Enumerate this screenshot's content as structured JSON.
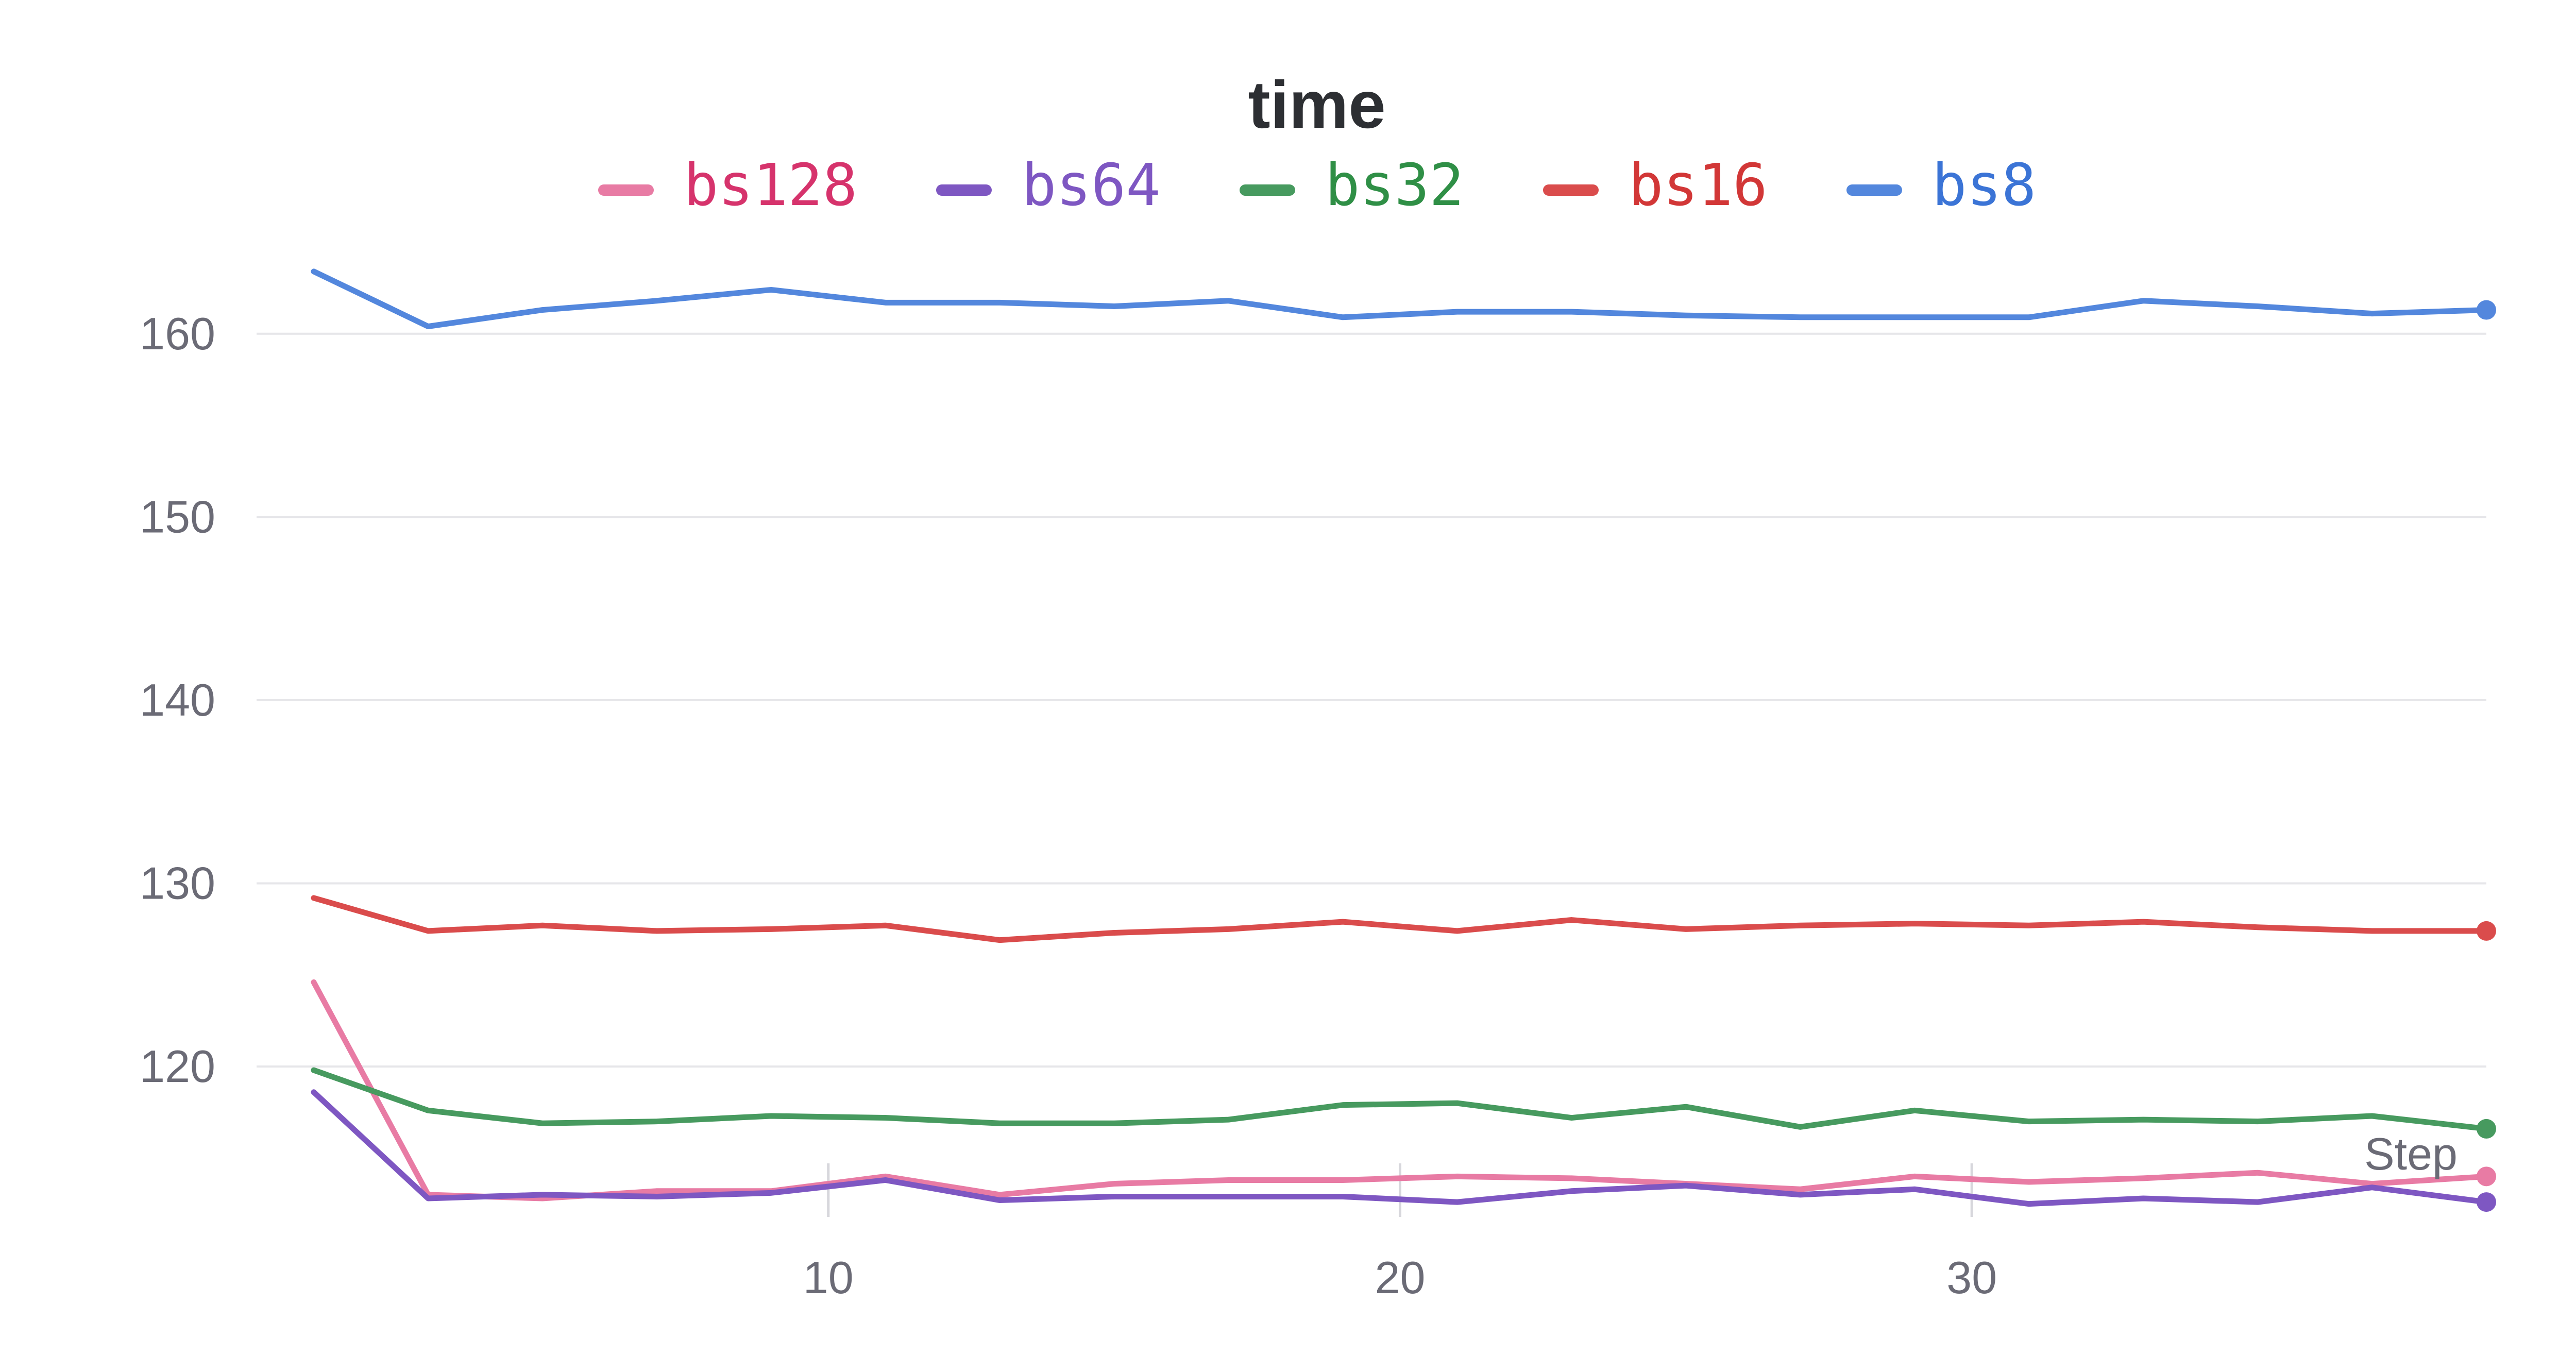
{
  "chart_data": {
    "type": "line",
    "title": "time",
    "xlabel": "Step",
    "ylabel": "",
    "xlim": [
      0,
      39
    ],
    "ylim": [
      111,
      165
    ],
    "y_ticks": [
      120,
      130,
      140,
      150,
      160
    ],
    "x_ticks": [
      10,
      20,
      30
    ],
    "grid": true,
    "legend_position": "top-center",
    "x": [
      1,
      3,
      5,
      7,
      9,
      11,
      13,
      15,
      17,
      19,
      21,
      23,
      25,
      27,
      29,
      31,
      33,
      35,
      37,
      39
    ],
    "series": [
      {
        "name": "bs128",
        "color": "#e87ba4",
        "label_color": "#d6336c",
        "values": [
          124.6,
          113.0,
          112.8,
          113.2,
          113.2,
          114.0,
          113.0,
          113.6,
          113.8,
          113.8,
          114.0,
          113.9,
          113.6,
          113.3,
          114.0,
          113.7,
          113.9,
          114.2,
          113.6,
          114.0
        ]
      },
      {
        "name": "bs64",
        "color": "#7e57c2",
        "label_color": "#7e57c2",
        "values": [
          118.6,
          112.8,
          113.0,
          112.9,
          113.1,
          113.8,
          112.7,
          112.9,
          112.9,
          112.9,
          112.6,
          113.2,
          113.5,
          113.0,
          113.3,
          112.5,
          112.8,
          112.6,
          113.4,
          112.6
        ]
      },
      {
        "name": "bs32",
        "color": "#479a5f",
        "label_color": "#2f8f46",
        "values": [
          119.8,
          117.6,
          116.9,
          117.0,
          117.3,
          117.2,
          116.9,
          116.9,
          117.1,
          117.9,
          118.0,
          117.2,
          117.8,
          116.7,
          117.6,
          117.0,
          117.1,
          117.0,
          117.3,
          116.6
        ]
      },
      {
        "name": "bs16",
        "color": "#da4c4c",
        "label_color": "#d23737",
        "values": [
          129.2,
          127.4,
          127.7,
          127.4,
          127.5,
          127.7,
          126.9,
          127.3,
          127.5,
          127.9,
          127.4,
          128.0,
          127.5,
          127.7,
          127.8,
          127.7,
          127.9,
          127.6,
          127.4,
          127.4
        ]
      },
      {
        "name": "bs8",
        "color": "#5387dd",
        "label_color": "#3b74d6",
        "values": [
          163.4,
          160.4,
          161.3,
          161.8,
          162.4,
          161.7,
          161.7,
          161.5,
          161.8,
          160.9,
          161.2,
          161.2,
          161.0,
          160.9,
          160.9,
          160.9,
          161.8,
          161.5,
          161.1,
          161.3
        ]
      }
    ]
  }
}
